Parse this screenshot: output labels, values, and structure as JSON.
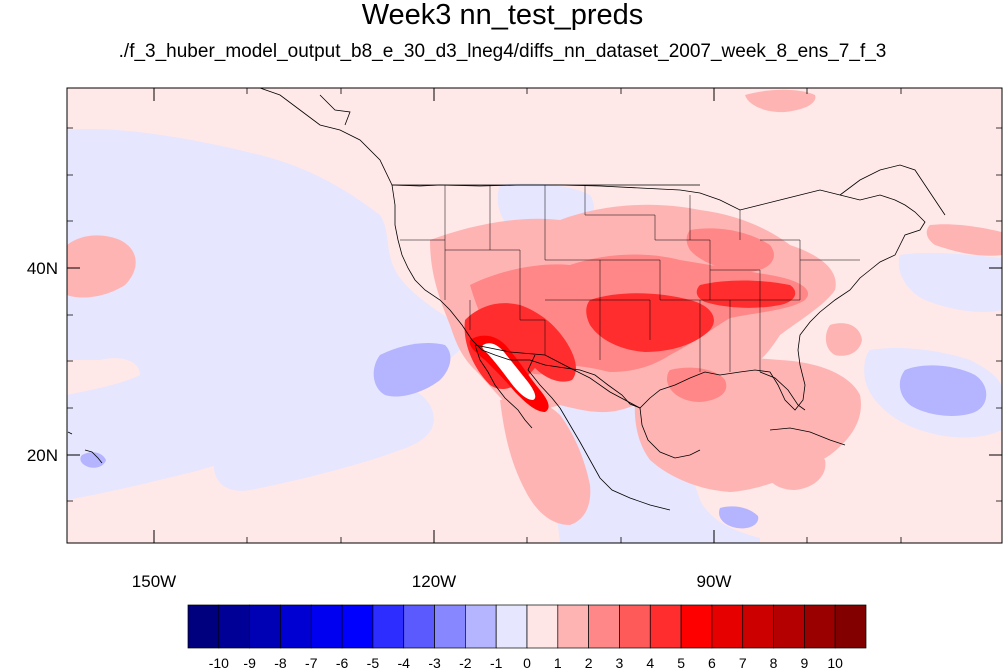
{
  "title": "Week3 nn_test_preds",
  "subtitle": "./f_3_huber_model_output_b8_e_30_d3_lneg4/diffs_nn_dataset_2007_week_8_ens_7_f_3",
  "axes": {
    "lat_labels": [
      "40N",
      "20N"
    ],
    "lon_labels": [
      "150W",
      "120W",
      "90W"
    ]
  },
  "colorbar": {
    "labels": [
      "-10",
      "-9",
      "-8",
      "-7",
      "-6",
      "-5",
      "-4",
      "-3",
      "-2",
      "-1",
      "0",
      "1",
      "2",
      "3",
      "4",
      "5",
      "6",
      "7",
      "8",
      "9",
      "10"
    ],
    "colors": [
      "#00007f",
      "#000096",
      "#0000b4",
      "#0000d2",
      "#0000f0",
      "#0000ff",
      "#2d2dff",
      "#5a5aff",
      "#8787ff",
      "#b4b4ff",
      "#e6e6ff",
      "#ffe6e6",
      "#ffb4b4",
      "#ff8787",
      "#ff5a5a",
      "#ff2d2d",
      "#ff0000",
      "#e60000",
      "#cd0000",
      "#b40000",
      "#9b0000",
      "#820000"
    ]
  },
  "colors": {
    "background_field": "#ffe8e8",
    "negative_light": "#e6e6ff",
    "negative_mid": "#b4b4ff",
    "positive_light": "#ffb4b4",
    "positive_mid": "#ff8787",
    "positive_strong": "#ff2d2d",
    "positive_max": "#ff0000"
  }
}
